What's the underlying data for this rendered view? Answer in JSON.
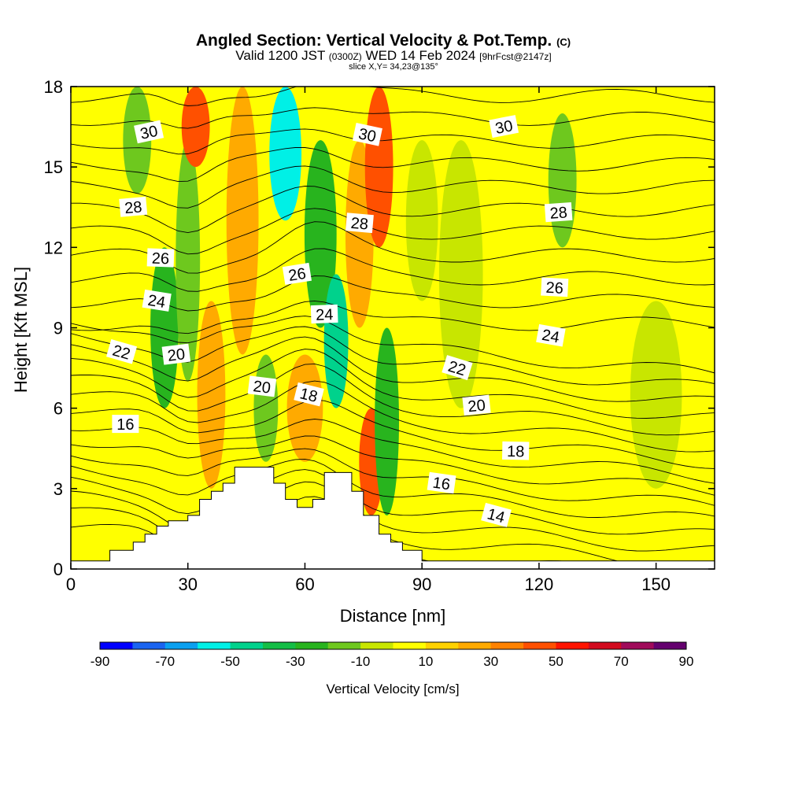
{
  "header": {
    "title": "Angled Section: Vertical Velocity & Pot.Temp.",
    "title_mark": "(C)",
    "subtitle_prefix": "Valid 1200 JST",
    "subtitle_zulu": "(0300Z)",
    "subtitle_date": "WED 14 Feb 2024",
    "subtitle_fcst": "[9hrFcst@2147z]",
    "slice": "slice X,Y= 34,23@135°"
  },
  "chart_data": {
    "type": "heatmap",
    "title": "Angled Section: Vertical Velocity & Pot.Temp.",
    "xlabel": "Distance [nm]",
    "ylabel": "Height [Kft MSL]",
    "xlim": [
      0,
      165
    ],
    "ylim": [
      0,
      18
    ],
    "x_ticks": [
      0,
      30,
      60,
      90,
      120,
      150
    ],
    "y_ticks": [
      0,
      3,
      6,
      9,
      12,
      15,
      18
    ],
    "x_tick_labels": [
      "0",
      "30",
      "60",
      "90",
      "120",
      "150"
    ],
    "y_tick_labels": [
      "0",
      "3",
      "6",
      "9",
      "12",
      "15",
      "18"
    ],
    "colorbar": {
      "label": "Vertical Velocity [cm/s]",
      "boundaries": [
        -90,
        -80,
        -70,
        -60,
        -50,
        -40,
        -30,
        -20,
        -10,
        0,
        10,
        20,
        30,
        40,
        50,
        60,
        70,
        80,
        90
      ],
      "tick_values": [
        -90,
        -70,
        -50,
        -30,
        -10,
        10,
        30,
        50,
        70,
        90
      ],
      "tick_labels": [
        "-90",
        "-70",
        "-50",
        "-30",
        "-10",
        "10",
        "30",
        "50",
        "70",
        "90"
      ],
      "colors": [
        "#0000ff",
        "#1a64f0",
        "#0aa0f0",
        "#00f0e6",
        "#00d28c",
        "#14be46",
        "#28b41e",
        "#6ec81e",
        "#c8e600",
        "#ffff00",
        "#ffd200",
        "#ffaa00",
        "#ff8200",
        "#ff5000",
        "#ff1400",
        "#d20a1e",
        "#a00a5a",
        "#64006e"
      ]
    },
    "terrain_profile": {
      "x": [
        0,
        10,
        10,
        16,
        16,
        19,
        19,
        22,
        22,
        25,
        25,
        30,
        30,
        33,
        33,
        36,
        36,
        39,
        39,
        42,
        42,
        52,
        52,
        55,
        55,
        58,
        58,
        62,
        62,
        65,
        65,
        72,
        72,
        75,
        75,
        79,
        79,
        82,
        82,
        85,
        85,
        90,
        90,
        165
      ],
      "y": [
        0.3,
        0.3,
        0.7,
        0.7,
        1.0,
        1.0,
        1.3,
        1.3,
        1.6,
        1.6,
        1.8,
        1.8,
        2.0,
        2.0,
        2.6,
        2.6,
        2.9,
        2.9,
        3.2,
        3.2,
        3.8,
        3.8,
        3.2,
        3.2,
        2.6,
        2.6,
        2.3,
        2.3,
        2.6,
        2.6,
        3.6,
        3.6,
        2.9,
        2.9,
        2.0,
        2.0,
        1.3,
        1.3,
        1.0,
        1.0,
        0.7,
        0.7,
        0.3,
        0.3
      ]
    },
    "vertical_velocity_bands": [
      {
        "x": 17,
        "y0": 14,
        "y1": 18,
        "width": 4,
        "value": -15
      },
      {
        "x": 24,
        "y0": 6,
        "y1": 12,
        "width": 4,
        "value": -25
      },
      {
        "x": 30,
        "y0": 7,
        "y1": 16,
        "width": 3,
        "value": -15
      },
      {
        "x": 32,
        "y0": 15,
        "y1": 18,
        "width": 4,
        "value": 45
      },
      {
        "x": 36,
        "y0": 3,
        "y1": 10,
        "width": 4,
        "value": 20
      },
      {
        "x": 44,
        "y0": 8,
        "y1": 18,
        "width": 5,
        "value": 25
      },
      {
        "x": 50,
        "y0": 4,
        "y1": 8,
        "width": 3,
        "value": -12
      },
      {
        "x": 55,
        "y0": 13,
        "y1": 18,
        "width": 5,
        "value": -55
      },
      {
        "x": 60,
        "y0": 4,
        "y1": 8,
        "width": 6,
        "value": 25
      },
      {
        "x": 64,
        "y0": 9,
        "y1": 16,
        "width": 5,
        "value": -30
      },
      {
        "x": 68,
        "y0": 6,
        "y1": 11,
        "width": 3,
        "value": -45
      },
      {
        "x": 74,
        "y0": 9,
        "y1": 16,
        "width": 4,
        "value": 20
      },
      {
        "x": 77,
        "y0": 2,
        "y1": 6,
        "width": 3,
        "value": 40
      },
      {
        "x": 79,
        "y0": 12,
        "y1": 18,
        "width": 4,
        "value": 45
      },
      {
        "x": 81,
        "y0": 2,
        "y1": 9,
        "width": 3,
        "value": -25
      },
      {
        "x": 90,
        "y0": 10,
        "y1": 16,
        "width": 5,
        "value": -10
      },
      {
        "x": 100,
        "y0": 6,
        "y1": 16,
        "width": 8,
        "value": -8
      },
      {
        "x": 126,
        "y0": 12,
        "y1": 17,
        "width": 4,
        "value": -15
      },
      {
        "x": 150,
        "y0": 3,
        "y1": 10,
        "width": 10,
        "value": -5
      }
    ],
    "potential_temperature_labels": [
      {
        "text": "30",
        "x": 20,
        "y": 16.3
      },
      {
        "text": "28",
        "x": 16,
        "y": 13.5
      },
      {
        "text": "26",
        "x": 23,
        "y": 11.6
      },
      {
        "text": "24",
        "x": 22,
        "y": 10.0
      },
      {
        "text": "22",
        "x": 13,
        "y": 8.1
      },
      {
        "text": "20",
        "x": 27,
        "y": 8.0
      },
      {
        "text": "16",
        "x": 14,
        "y": 5.4
      },
      {
        "text": "20",
        "x": 49,
        "y": 6.8
      },
      {
        "text": "18",
        "x": 61,
        "y": 6.5
      },
      {
        "text": "26",
        "x": 58,
        "y": 11.0
      },
      {
        "text": "24",
        "x": 65,
        "y": 9.5
      },
      {
        "text": "28",
        "x": 74,
        "y": 12.9
      },
      {
        "text": "30",
        "x": 76,
        "y": 16.2
      },
      {
        "text": "30",
        "x": 111,
        "y": 16.5
      },
      {
        "text": "28",
        "x": 125,
        "y": 13.3
      },
      {
        "text": "26",
        "x": 124,
        "y": 10.5
      },
      {
        "text": "24",
        "x": 123,
        "y": 8.7
      },
      {
        "text": "22",
        "x": 99,
        "y": 7.5
      },
      {
        "text": "20",
        "x": 104,
        "y": 6.1
      },
      {
        "text": "18",
        "x": 114,
        "y": 4.4
      },
      {
        "text": "16",
        "x": 95,
        "y": 3.2
      },
      {
        "text": "14",
        "x": 109,
        "y": 2.0
      }
    ]
  }
}
